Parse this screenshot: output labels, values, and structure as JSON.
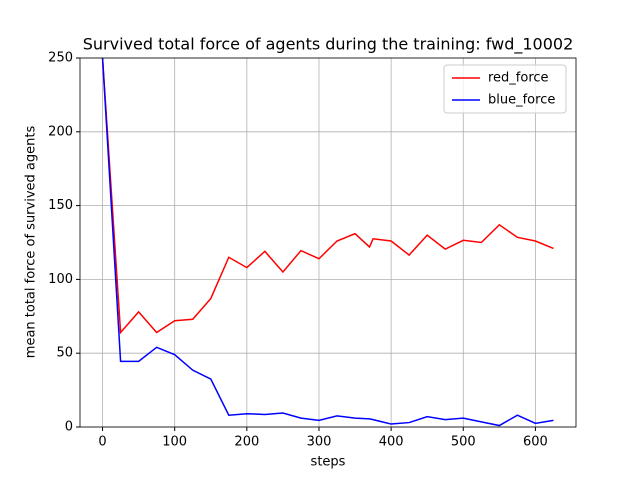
{
  "chart_data": {
    "type": "line",
    "title": "Survived total force of agents during the training: fwd_10002",
    "xlabel": "steps",
    "ylabel": "mean total force of survived agents",
    "x": [
      0,
      25,
      50,
      75,
      100,
      125,
      150,
      175,
      200,
      225,
      250,
      275,
      300,
      325,
      350,
      370,
      375,
      400,
      425,
      450,
      475,
      500,
      525,
      550,
      575,
      600,
      625
    ],
    "series": [
      {
        "name": "red_force",
        "color": "#ff0000",
        "values": [
          250,
          64,
          78,
          64,
          72,
          73,
          87,
          115,
          108,
          119,
          105,
          119.5,
          114,
          126,
          131,
          122,
          127.5,
          126,
          116.5,
          130,
          120.5,
          126.5,
          125,
          137,
          128.5,
          126,
          121
        ]
      },
      {
        "name": "blue_force",
        "color": "#0000ff",
        "values": [
          250,
          44.5,
          44.5,
          54,
          49,
          38.5,
          32.5,
          8,
          9,
          8.5,
          9.5,
          6,
          4.5,
          7.5,
          6,
          5.5,
          5,
          2,
          3,
          7,
          5,
          6,
          3.5,
          1,
          8,
          2.5,
          4.5
        ]
      }
    ],
    "xlim": [
      -31.25,
      656.25
    ],
    "ylim": [
      0,
      250
    ],
    "xticks": [
      0,
      100,
      200,
      300,
      400,
      500,
      600
    ],
    "yticks": [
      0,
      50,
      100,
      150,
      200,
      250
    ],
    "grid": true,
    "legend": "upper-right"
  }
}
